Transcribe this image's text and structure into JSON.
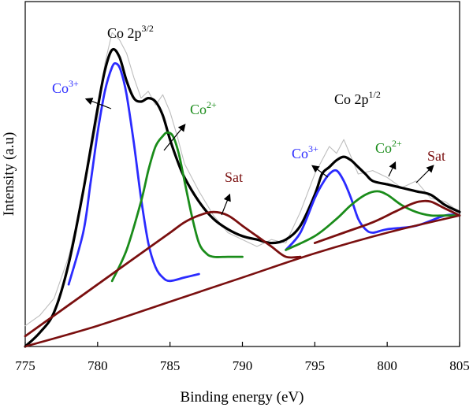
{
  "chart_data": {
    "type": "line",
    "xlabel": "Binding energy (eV)",
    "ylabel": "Intensity (a.u)",
    "xlim": [
      775,
      805
    ],
    "ylim": [
      0,
      1
    ],
    "x_ticks": [
      775,
      780,
      785,
      790,
      795,
      800,
      805
    ],
    "y_ticks": [],
    "grid": false,
    "legend": "none",
    "series": [
      {
        "key": "raw",
        "color": "#bdbdbd",
        "x": [
          775.0,
          776.0,
          777.0,
          778.0,
          779.0,
          780.0,
          780.5,
          781.0,
          781.5,
          782.0,
          782.5,
          783.0,
          783.5,
          784.0,
          784.5,
          785.0,
          785.5,
          786.0,
          787.0,
          788.0,
          789.0,
          790.0,
          791.0,
          792.0,
          793.0,
          794.0,
          795.0,
          795.5,
          796.0,
          796.5,
          797.0,
          797.5,
          798.0,
          799.0,
          800.0,
          801.0,
          802.0,
          803.0,
          804.0,
          805.0
        ],
        "y": [
          0.06,
          0.09,
          0.14,
          0.26,
          0.44,
          0.66,
          0.82,
          0.91,
          0.89,
          0.85,
          0.78,
          0.72,
          0.74,
          0.7,
          0.73,
          0.68,
          0.61,
          0.53,
          0.45,
          0.38,
          0.33,
          0.31,
          0.29,
          0.31,
          0.3,
          0.39,
          0.5,
          0.54,
          0.58,
          0.56,
          0.6,
          0.55,
          0.5,
          0.51,
          0.49,
          0.46,
          0.48,
          0.43,
          0.42,
          0.39
        ]
      },
      {
        "key": "envelope",
        "color": "#000000",
        "x": [
          775.0,
          776.0,
          777.0,
          778.0,
          779.0,
          780.0,
          780.5,
          781.0,
          781.5,
          782.0,
          782.5,
          783.0,
          783.5,
          784.0,
          784.5,
          785.0,
          785.5,
          786.0,
          787.0,
          788.0,
          789.0,
          790.0,
          791.0,
          792.0,
          793.0,
          794.0,
          795.0,
          795.5,
          796.0,
          796.5,
          797.0,
          797.5,
          798.0,
          798.5,
          799.0,
          800.0,
          801.0,
          802.0,
          803.0,
          804.0,
          805.0
        ],
        "y": [
          0.0,
          0.04,
          0.1,
          0.24,
          0.45,
          0.69,
          0.8,
          0.86,
          0.84,
          0.77,
          0.72,
          0.71,
          0.72,
          0.71,
          0.67,
          0.6,
          0.54,
          0.49,
          0.42,
          0.37,
          0.34,
          0.32,
          0.31,
          0.3,
          0.31,
          0.35,
          0.44,
          0.5,
          0.52,
          0.54,
          0.55,
          0.54,
          0.52,
          0.5,
          0.48,
          0.47,
          0.46,
          0.45,
          0.44,
          0.41,
          0.39
        ]
      },
      {
        "key": "co3_2p32",
        "color": "#2b2bff",
        "x": [
          778.0,
          779.0,
          779.5,
          780.0,
          780.5,
          781.0,
          781.3,
          781.6,
          782.0,
          782.5,
          783.0,
          783.5,
          784.0,
          784.5,
          785.0,
          786.0,
          787.0
        ],
        "y": [
          0.18,
          0.33,
          0.47,
          0.62,
          0.74,
          0.81,
          0.82,
          0.8,
          0.73,
          0.59,
          0.43,
          0.3,
          0.23,
          0.2,
          0.19,
          0.2,
          0.21
        ]
      },
      {
        "key": "co2_2p32",
        "color": "#1a8c1a",
        "x": [
          781.0,
          782.0,
          783.0,
          783.5,
          784.0,
          784.5,
          784.8,
          785.2,
          785.6,
          786.0,
          786.5,
          787.0,
          787.5,
          788.0,
          789.0,
          790.0
        ],
        "y": [
          0.19,
          0.28,
          0.42,
          0.51,
          0.58,
          0.61,
          0.62,
          0.61,
          0.56,
          0.48,
          0.38,
          0.3,
          0.27,
          0.26,
          0.26,
          0.26
        ]
      },
      {
        "key": "sat_2p32",
        "color": "#7a0f0f",
        "x": [
          775.0,
          777.0,
          779.0,
          781.0,
          783.0,
          785.0,
          786.0,
          787.0,
          788.0,
          789.0,
          790.0,
          791.0,
          792.0,
          793.0,
          794.0
        ],
        "y": [
          0.03,
          0.09,
          0.15,
          0.21,
          0.27,
          0.33,
          0.36,
          0.38,
          0.39,
          0.38,
          0.35,
          0.32,
          0.29,
          0.26,
          0.26
        ]
      },
      {
        "key": "co3_2p12",
        "color": "#2b2bff",
        "x": [
          793.0,
          794.0,
          795.0,
          795.5,
          796.0,
          796.5,
          797.0,
          797.5,
          798.0,
          798.5,
          799.0,
          800.0,
          802.0,
          804.0,
          805.0
        ],
        "y": [
          0.28,
          0.33,
          0.43,
          0.47,
          0.5,
          0.51,
          0.48,
          0.43,
          0.37,
          0.34,
          0.33,
          0.34,
          0.35,
          0.38,
          0.38
        ]
      },
      {
        "key": "co2_2p12",
        "color": "#1a8c1a",
        "x": [
          793.0,
          795.0,
          796.5,
          797.5,
          798.5,
          799.3,
          800.0,
          801.0,
          802.0,
          803.0,
          804.0,
          805.0
        ],
        "y": [
          0.28,
          0.32,
          0.37,
          0.41,
          0.44,
          0.45,
          0.44,
          0.41,
          0.39,
          0.38,
          0.38,
          0.38
        ]
      },
      {
        "key": "sat_2p12",
        "color": "#7a0f0f",
        "x": [
          795.0,
          797.0,
          799.0,
          800.5,
          801.5,
          802.2,
          803.0,
          804.0,
          805.0
        ],
        "y": [
          0.3,
          0.33,
          0.36,
          0.39,
          0.41,
          0.42,
          0.42,
          0.4,
          0.38
        ]
      },
      {
        "key": "baseline",
        "color": "#7a0f0f",
        "x": [
          775.0,
          780.0,
          785.0,
          790.0,
          795.0,
          800.0,
          805.0
        ],
        "y": [
          0.0,
          0.06,
          0.13,
          0.2,
          0.27,
          0.33,
          0.38
        ]
      }
    ],
    "annotations": [
      {
        "key": "co2p32",
        "base": "Co 2p",
        "sup": "3/2",
        "color": "#000000"
      },
      {
        "key": "co2p12",
        "base": "Co 2p",
        "sup": "1/2",
        "color": "#000000"
      },
      {
        "key": "co3_a",
        "base": "Co",
        "sup": "3+",
        "color": "#2b2bff"
      },
      {
        "key": "co2_a",
        "base": "Co",
        "sup": "2+",
        "color": "#1a8c1a"
      },
      {
        "key": "sat_a",
        "base": "Sat",
        "sup": "",
        "color": "#7a0f0f"
      },
      {
        "key": "co3_b",
        "base": "Co",
        "sup": "3+",
        "color": "#2b2bff"
      },
      {
        "key": "co2_b",
        "base": "Co",
        "sup": "2+",
        "color": "#1a8c1a"
      },
      {
        "key": "sat_b",
        "base": "Sat",
        "sup": "",
        "color": "#7a0f0f"
      }
    ]
  }
}
